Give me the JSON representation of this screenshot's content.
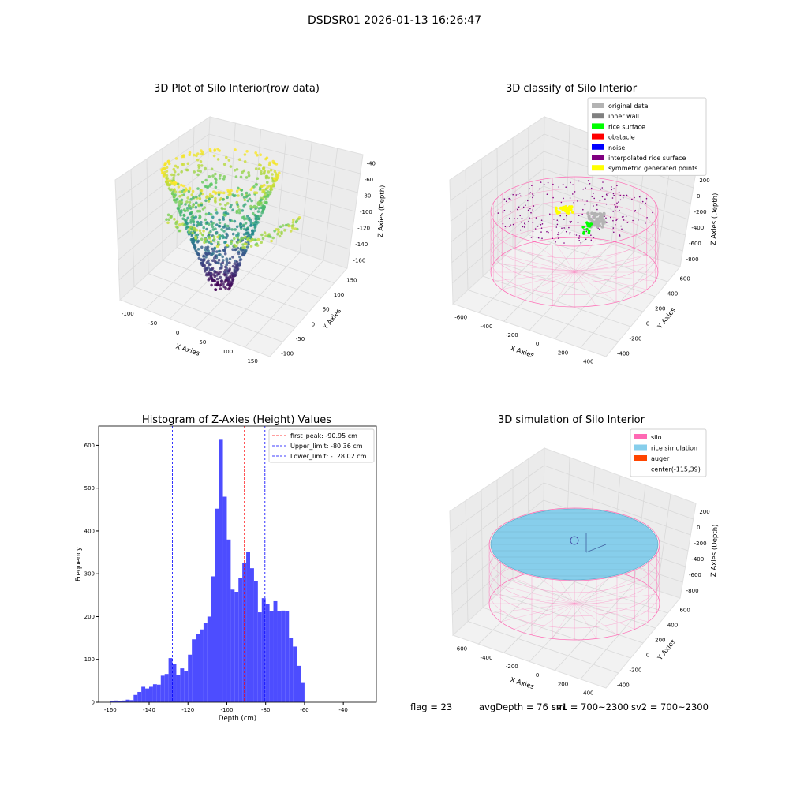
{
  "figure": {
    "suptitle": "DSDSR01 2026-01-13 16:26:47",
    "status": {
      "flag": "flag = 23",
      "avg_depth": "avgDepth = 76 cm",
      "sv1": "sv1 = 700~2300",
      "sv2": "sv2 = 700~2300"
    }
  },
  "chart_data": [
    {
      "type": "scatter",
      "projection": "3d",
      "title": "3D Plot of Silo Interior(row data)",
      "xlabel": "X Axies",
      "ylabel": "Y Axies",
      "zlabel": "Z Axies (Depth)",
      "x_ticks": [
        -100,
        -50,
        0,
        50,
        100,
        150
      ],
      "y_ticks": [
        -100,
        -50,
        0,
        50,
        100,
        150
      ],
      "z_ticks": [
        -40,
        -60,
        -80,
        -100,
        -120,
        -140,
        -160
      ],
      "xlim": [
        -110,
        160
      ],
      "ylim": [
        -110,
        160
      ],
      "zlim": [
        -165,
        -30
      ],
      "colormap": "viridis",
      "grid": true
    },
    {
      "type": "scatter",
      "projection": "3d",
      "title": "3D classify of Silo Interior",
      "xlabel": "X Axies",
      "ylabel": "Y Axies",
      "zlabel": "Z Axies (Depth)",
      "x_ticks": [
        -600,
        -400,
        -200,
        0,
        200,
        400
      ],
      "y_ticks": [
        -400,
        -200,
        0,
        200,
        400,
        600
      ],
      "z_ticks": [
        200,
        0,
        -200,
        -400,
        -600,
        -800
      ],
      "legend": {
        "placement": "upper-right",
        "entries": [
          {
            "label": "original data",
            "color": "#b3b3b3"
          },
          {
            "label": "inner wall",
            "color": "#808080"
          },
          {
            "label": "rice surface",
            "color": "#00ff00"
          },
          {
            "label": "obstacle",
            "color": "#ff0000"
          },
          {
            "label": "noise",
            "color": "#0000ff"
          },
          {
            "label": "interpolated rice surface",
            "color": "#800080"
          },
          {
            "label": "symmetric generated points",
            "color": "#ffff00"
          }
        ]
      },
      "grid": true
    },
    {
      "type": "bar",
      "title": "Histogram of Z-Axies (Height) Values",
      "xlabel": "Depth (cm)",
      "ylabel": "Frequency",
      "bar_color": "#4d4dff",
      "bin_start": -160,
      "bin_width": 2,
      "values": [
        2,
        4,
        2,
        4,
        6,
        5,
        17,
        24,
        36,
        32,
        36,
        42,
        41,
        62,
        66,
        103,
        90,
        63,
        79,
        73,
        111,
        147,
        160,
        170,
        185,
        200,
        294,
        452,
        613,
        480,
        380,
        263,
        258,
        290,
        325,
        352,
        313,
        282,
        210,
        243,
        230,
        213,
        236,
        212,
        214,
        212,
        150,
        130,
        85,
        45
      ],
      "x_ticks": [
        -160,
        -140,
        -120,
        -100,
        -80,
        -60,
        -40
      ],
      "y_ticks": [
        0,
        100,
        200,
        300,
        400,
        500,
        600
      ],
      "xlim": [
        -166,
        -23
      ],
      "ylim": [
        0,
        645
      ],
      "vlines": [
        {
          "label": "first_peak: -90.95 cm",
          "x": -90.95,
          "color": "#ff0000"
        },
        {
          "label": "Upper_limit: -80.36 cm",
          "x": -80.36,
          "color": "#0000ff"
        },
        {
          "label": "Lower_limit: -128.02 cm",
          "x": -128.02,
          "color": "#0000ff"
        }
      ],
      "legend": "upper-right"
    },
    {
      "type": "scatter",
      "projection": "3d",
      "title": "3D simulation of Silo Interior",
      "xlabel": "X Axies",
      "ylabel": "Y Axies",
      "zlabel": "Z Axies (Depth)",
      "x_ticks": [
        -600,
        -400,
        -200,
        0,
        200,
        400
      ],
      "y_ticks": [
        -400,
        -200,
        0,
        200,
        400,
        600
      ],
      "z_ticks": [
        200,
        0,
        -200,
        -400,
        -600,
        -800
      ],
      "legend": {
        "placement": "upper-right",
        "entries": [
          {
            "label": "silo",
            "color": "#ff69b4"
          },
          {
            "label": "rice simulation",
            "color": "#87ceeb"
          },
          {
            "label": "auger",
            "color": "#ff4500"
          },
          {
            "label": "center(-115,39)",
            "color": ""
          }
        ]
      },
      "grid": true
    }
  ]
}
